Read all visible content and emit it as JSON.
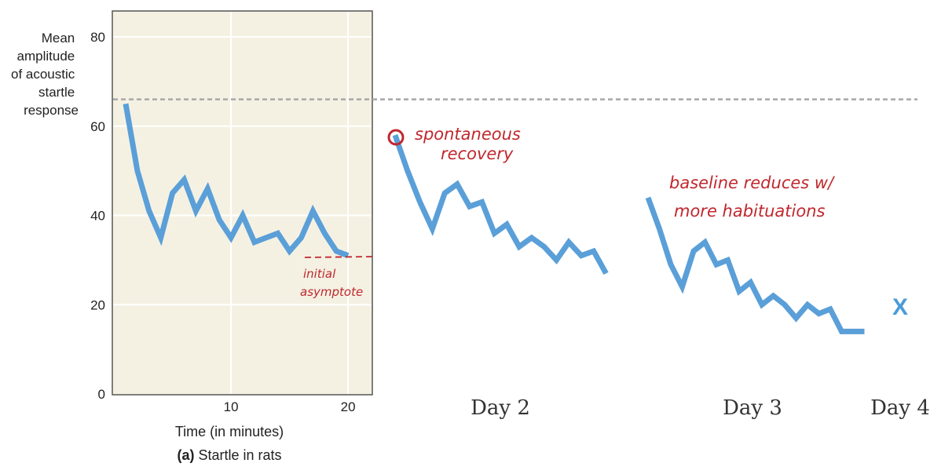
{
  "chart_data": {
    "type": "line",
    "ylabel_lines": [
      "Mean",
      "amplitude",
      "of acoustic",
      "startle",
      "response"
    ],
    "xlabel": "Time (in minutes)",
    "caption_letter": "(a)",
    "caption_text": "Startle in rats",
    "yticks": [
      0,
      20,
      40,
      60,
      80
    ],
    "xticks": [
      10,
      20
    ],
    "ylim": [
      0,
      80
    ],
    "xlim": [
      0,
      22
    ],
    "grid": true,
    "reference_level": 66,
    "series": [
      {
        "day_label": "",
        "x": [
          1,
          2,
          3,
          4,
          5,
          6,
          7,
          8,
          9,
          10,
          11,
          12,
          13,
          14,
          15,
          16,
          17,
          18,
          19,
          20
        ],
        "values": [
          65,
          50,
          41,
          35,
          45,
          48,
          41,
          46,
          39,
          35,
          40,
          34,
          35,
          36,
          32,
          35,
          41,
          36,
          32,
          31
        ]
      },
      {
        "day_label": "Day 2",
        "x": [
          1,
          2,
          3,
          4,
          5,
          6,
          7,
          8,
          9,
          10,
          11,
          12,
          13,
          14,
          15,
          16,
          17,
          18
        ],
        "values": [
          58,
          50,
          43,
          37,
          45,
          47,
          42,
          43,
          36,
          38,
          33,
          35,
          33,
          30,
          34,
          31,
          32,
          27
        ]
      },
      {
        "day_label": "Day 3",
        "x": [
          1,
          2,
          3,
          4,
          5,
          6,
          7,
          8,
          9,
          10,
          11,
          12,
          13,
          14,
          15,
          16,
          17,
          18,
          19,
          20
        ],
        "values": [
          44,
          37,
          29,
          24,
          32,
          34,
          29,
          30,
          23,
          25,
          20,
          22,
          20,
          17,
          20,
          18,
          19,
          14,
          14,
          14
        ]
      },
      {
        "day_label": "Day 4",
        "x": [],
        "values": []
      }
    ]
  },
  "annotations": {
    "initial_asymptote_line1": "initial",
    "initial_asymptote_line2": "asymptote",
    "spontaneous_line1": "spontaneous",
    "spontaneous_line2": "recovery",
    "baseline_line1": "baseline reduces w/",
    "baseline_line2": "more habituations",
    "day4_mark": "X"
  },
  "colors": {
    "panel_bg": "#f4f1e3",
    "series": "#5a9fd8",
    "reference": "#a8a8a8",
    "annotation": "#c0282d",
    "grid": "#ffffff"
  }
}
